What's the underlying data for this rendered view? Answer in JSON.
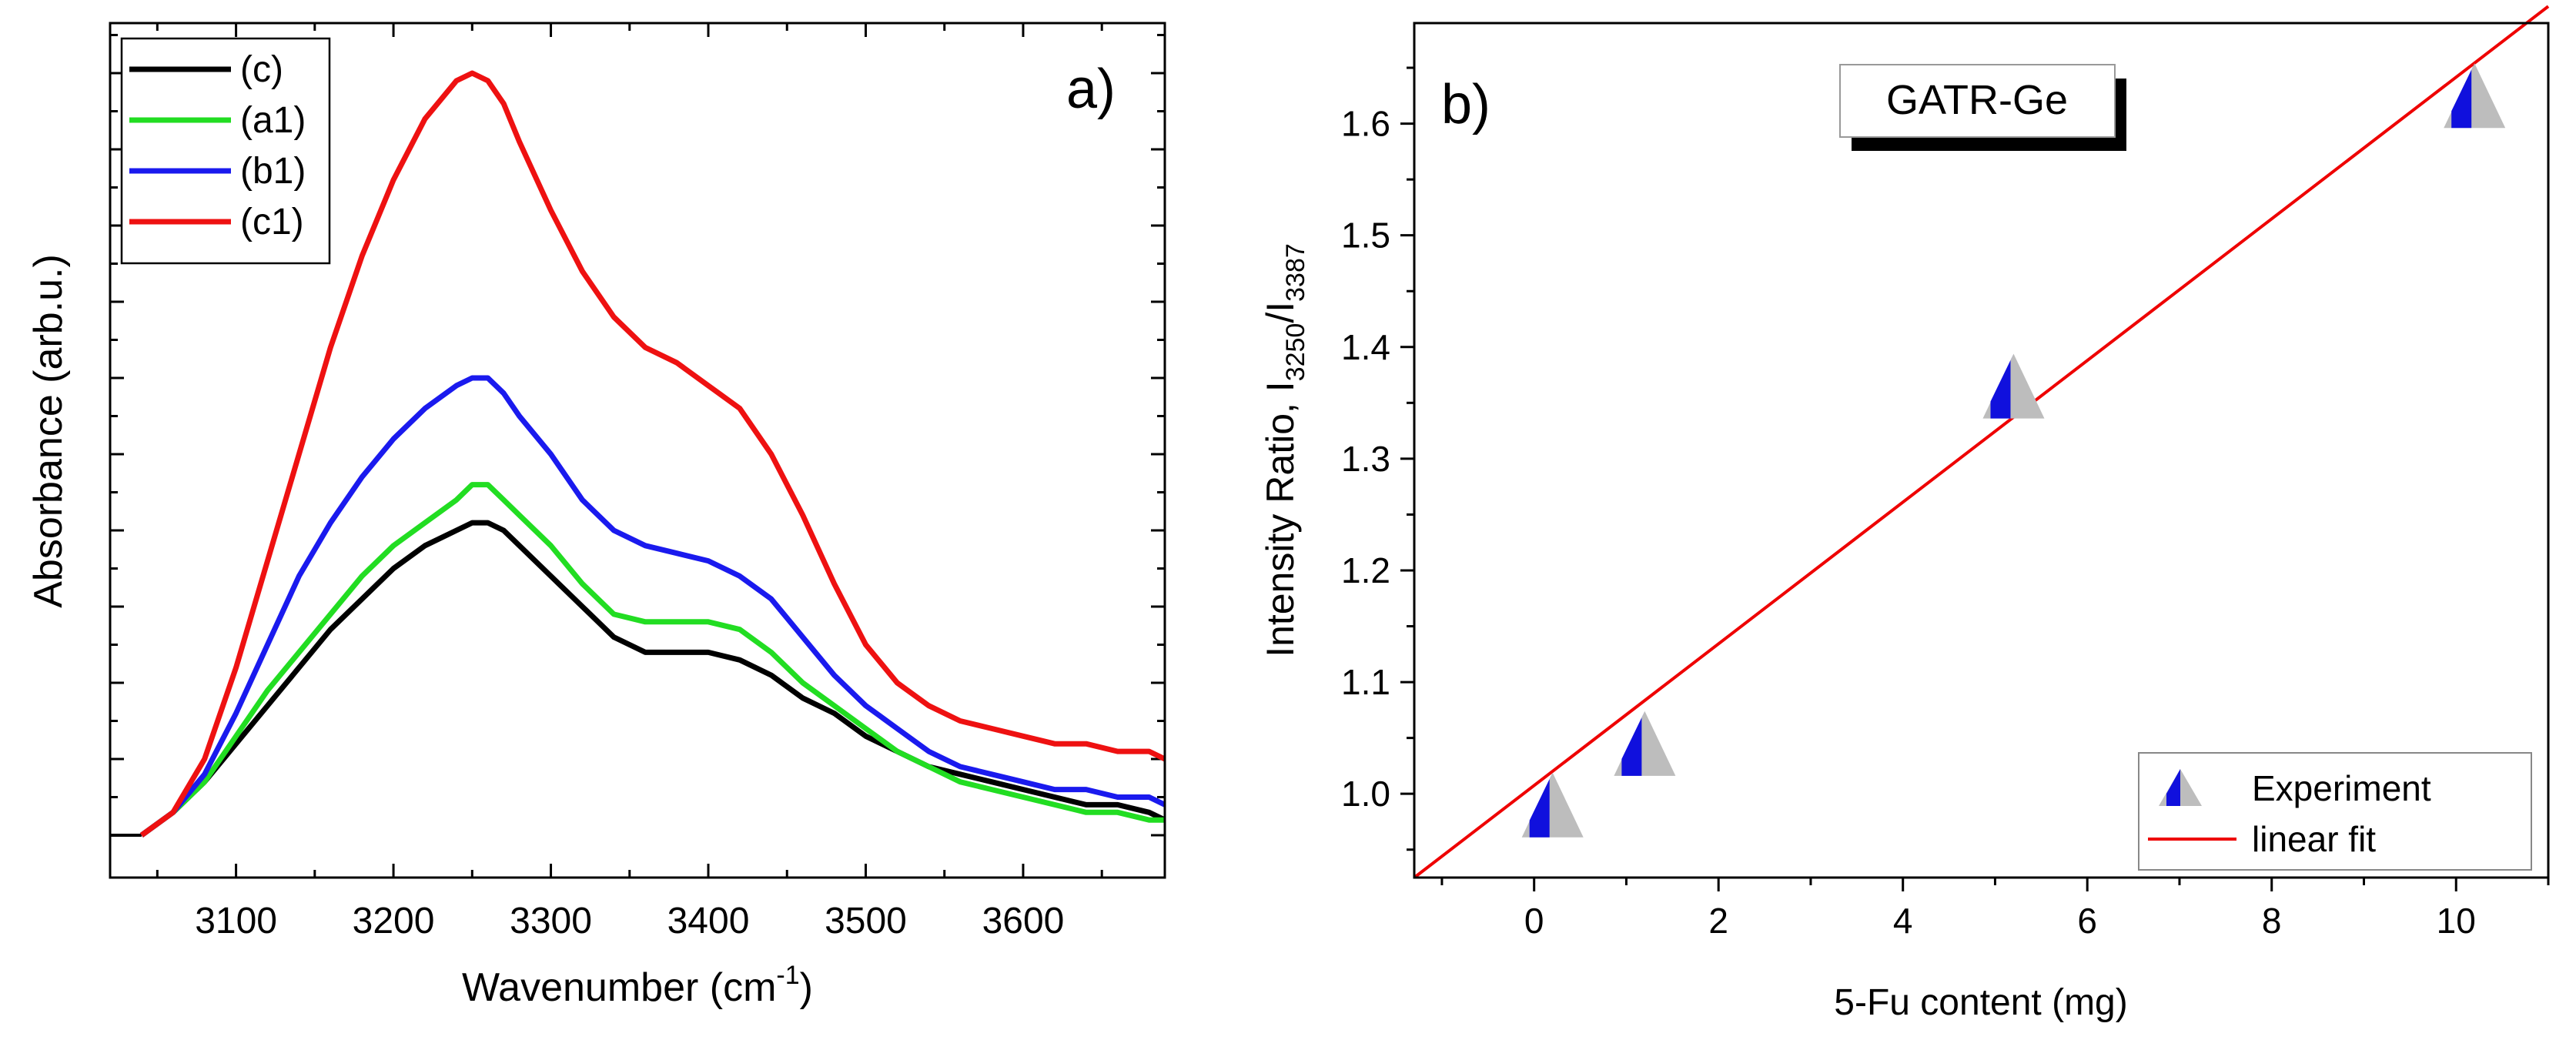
{
  "chart_data": [
    {
      "type": "line",
      "panel_label": "a)",
      "xlabel_main": "Wavenumber (cm",
      "xlabel_sup": "-1",
      "xlabel_end": ")",
      "ylabel": "Absorbance (arb.u.)",
      "xlim": [
        3020,
        3690
      ],
      "ylim": [
        0,
        1.05
      ],
      "x_ticks": [
        "3100",
        "3200",
        "3300",
        "3400",
        "3500",
        "3600"
      ],
      "y_tick_labels": "none",
      "legend_position": "top-left",
      "series": [
        {
          "name": "(c)",
          "color": "#000000",
          "points": [
            [
              3040,
              0.0
            ],
            [
              3060,
              0.03
            ],
            [
              3080,
              0.07
            ],
            [
              3100,
              0.12
            ],
            [
              3120,
              0.17
            ],
            [
              3140,
              0.22
            ],
            [
              3160,
              0.27
            ],
            [
              3180,
              0.31
            ],
            [
              3200,
              0.35
            ],
            [
              3220,
              0.38
            ],
            [
              3240,
              0.4
            ],
            [
              3250,
              0.41
            ],
            [
              3260,
              0.41
            ],
            [
              3270,
              0.4
            ],
            [
              3280,
              0.38
            ],
            [
              3300,
              0.34
            ],
            [
              3320,
              0.3
            ],
            [
              3340,
              0.26
            ],
            [
              3360,
              0.24
            ],
            [
              3380,
              0.24
            ],
            [
              3400,
              0.24
            ],
            [
              3420,
              0.23
            ],
            [
              3440,
              0.21
            ],
            [
              3460,
              0.18
            ],
            [
              3480,
              0.16
            ],
            [
              3500,
              0.13
            ],
            [
              3520,
              0.11
            ],
            [
              3540,
              0.09
            ],
            [
              3560,
              0.08
            ],
            [
              3580,
              0.07
            ],
            [
              3600,
              0.06
            ],
            [
              3620,
              0.05
            ],
            [
              3640,
              0.04
            ],
            [
              3660,
              0.04
            ],
            [
              3680,
              0.03
            ],
            [
              3690,
              0.02
            ]
          ]
        },
        {
          "name": "(a1)",
          "color": "#22dd22",
          "points": [
            [
              3040,
              0.0
            ],
            [
              3060,
              0.03
            ],
            [
              3080,
              0.07
            ],
            [
              3100,
              0.13
            ],
            [
              3120,
              0.19
            ],
            [
              3140,
              0.24
            ],
            [
              3160,
              0.29
            ],
            [
              3180,
              0.34
            ],
            [
              3200,
              0.38
            ],
            [
              3220,
              0.41
            ],
            [
              3240,
              0.44
            ],
            [
              3250,
              0.46
            ],
            [
              3260,
              0.46
            ],
            [
              3270,
              0.44
            ],
            [
              3280,
              0.42
            ],
            [
              3300,
              0.38
            ],
            [
              3320,
              0.33
            ],
            [
              3340,
              0.29
            ],
            [
              3360,
              0.28
            ],
            [
              3380,
              0.28
            ],
            [
              3400,
              0.28
            ],
            [
              3420,
              0.27
            ],
            [
              3440,
              0.24
            ],
            [
              3460,
              0.2
            ],
            [
              3480,
              0.17
            ],
            [
              3500,
              0.14
            ],
            [
              3520,
              0.11
            ],
            [
              3540,
              0.09
            ],
            [
              3560,
              0.07
            ],
            [
              3580,
              0.06
            ],
            [
              3600,
              0.05
            ],
            [
              3620,
              0.04
            ],
            [
              3640,
              0.03
            ],
            [
              3660,
              0.03
            ],
            [
              3680,
              0.02
            ],
            [
              3690,
              0.02
            ]
          ]
        },
        {
          "name": "(b1)",
          "color": "#1a1aee",
          "points": [
            [
              3040,
              0.0
            ],
            [
              3060,
              0.03
            ],
            [
              3080,
              0.08
            ],
            [
              3100,
              0.16
            ],
            [
              3120,
              0.25
            ],
            [
              3140,
              0.34
            ],
            [
              3160,
              0.41
            ],
            [
              3180,
              0.47
            ],
            [
              3200,
              0.52
            ],
            [
              3220,
              0.56
            ],
            [
              3240,
              0.59
            ],
            [
              3250,
              0.6
            ],
            [
              3260,
              0.6
            ],
            [
              3270,
              0.58
            ],
            [
              3280,
              0.55
            ],
            [
              3300,
              0.5
            ],
            [
              3320,
              0.44
            ],
            [
              3340,
              0.4
            ],
            [
              3360,
              0.38
            ],
            [
              3380,
              0.37
            ],
            [
              3400,
              0.36
            ],
            [
              3420,
              0.34
            ],
            [
              3440,
              0.31
            ],
            [
              3460,
              0.26
            ],
            [
              3480,
              0.21
            ],
            [
              3500,
              0.17
            ],
            [
              3520,
              0.14
            ],
            [
              3540,
              0.11
            ],
            [
              3560,
              0.09
            ],
            [
              3580,
              0.08
            ],
            [
              3600,
              0.07
            ],
            [
              3620,
              0.06
            ],
            [
              3640,
              0.06
            ],
            [
              3660,
              0.05
            ],
            [
              3680,
              0.05
            ],
            [
              3690,
              0.04
            ]
          ]
        },
        {
          "name": "(c1)",
          "color": "#ee1111",
          "points": [
            [
              3040,
              0.0
            ],
            [
              3060,
              0.03
            ],
            [
              3080,
              0.1
            ],
            [
              3100,
              0.22
            ],
            [
              3120,
              0.36
            ],
            [
              3140,
              0.5
            ],
            [
              3160,
              0.64
            ],
            [
              3180,
              0.76
            ],
            [
              3200,
              0.86
            ],
            [
              3220,
              0.94
            ],
            [
              3240,
              0.99
            ],
            [
              3250,
              1.0
            ],
            [
              3260,
              0.99
            ],
            [
              3270,
              0.96
            ],
            [
              3280,
              0.91
            ],
            [
              3300,
              0.82
            ],
            [
              3320,
              0.74
            ],
            [
              3340,
              0.68
            ],
            [
              3360,
              0.64
            ],
            [
              3380,
              0.62
            ],
            [
              3400,
              0.59
            ],
            [
              3420,
              0.56
            ],
            [
              3440,
              0.5
            ],
            [
              3460,
              0.42
            ],
            [
              3480,
              0.33
            ],
            [
              3500,
              0.25
            ],
            [
              3520,
              0.2
            ],
            [
              3540,
              0.17
            ],
            [
              3560,
              0.15
            ],
            [
              3580,
              0.14
            ],
            [
              3600,
              0.13
            ],
            [
              3620,
              0.12
            ],
            [
              3640,
              0.12
            ],
            [
              3660,
              0.11
            ],
            [
              3680,
              0.11
            ],
            [
              3690,
              0.1
            ]
          ]
        }
      ]
    },
    {
      "type": "scatter",
      "panel_label": "b)",
      "box_label": "GATR-Ge",
      "xlabel": "5-Fu content (mg)",
      "ylabel_main": "Intensity Ratio, I",
      "ylabel_sub1": "3250",
      "ylabel_mid": "/I",
      "ylabel_sub2": "3387",
      "xlim": [
        -1.3,
        11.0
      ],
      "ylim": [
        0.925,
        1.69
      ],
      "x_ticks": [
        "0",
        "2",
        "4",
        "6",
        "8",
        "10"
      ],
      "y_ticks": [
        "1.0",
        "1.1",
        "1.2",
        "1.3",
        "1.4",
        "1.5",
        "1.6"
      ],
      "legend_position": "bottom-right",
      "experiment": {
        "name": "Experiment",
        "x": [
          0,
          1,
          5,
          10
        ],
        "y": [
          0.99,
          1.045,
          1.365,
          1.625
        ]
      },
      "fit": {
        "name": "linear fit",
        "color": "#ee0000",
        "x": [
          -1.3,
          11.0
        ],
        "y": [
          0.925,
          1.705
        ]
      }
    }
  ]
}
